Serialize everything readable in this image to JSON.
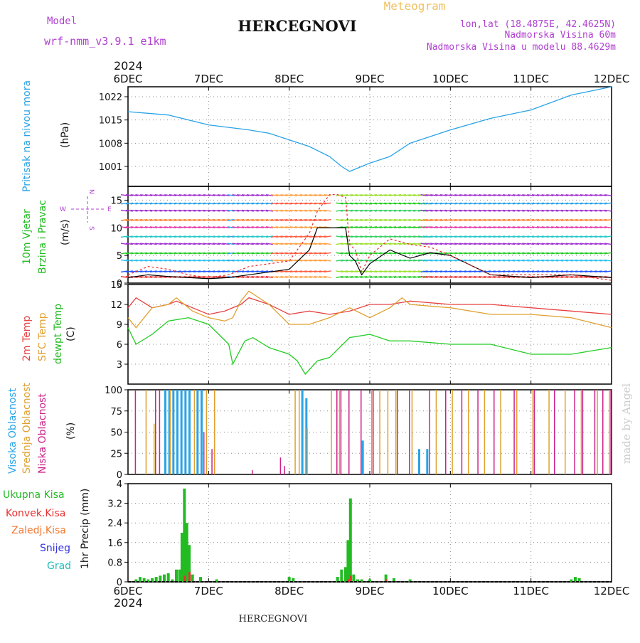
{
  "header": {
    "model_label": "Model",
    "model_name": "wrf-nmm_v3.9.1  e1km",
    "station": "HERCEGNOVI",
    "product": "Meteogram",
    "lonlat": "lon,lat (18.4875E, 42.4625N)",
    "elevation": "Nadmorska Visina 60m",
    "model_elevation": "Nadmorska Visina u modelu 88.4629m",
    "year": "2024",
    "footer_station": "HERCEGNOVI",
    "watermark": "made by Angel"
  },
  "colors": {
    "pressure": "#29a3e6",
    "wind_speed": "#000000",
    "wind_gust": "#e83030",
    "temp2m": "#e84040",
    "sfc_temp": "#e0a030",
    "dewpoint": "#22cc22",
    "cloud_high": "#29a3e6",
    "cloud_mid": "#e0a030",
    "cloud_low": "#cc2288",
    "total_precip": "#22bb22",
    "conv_precip": "#e83030",
    "frozen_precip": "#f07830",
    "snow": "#3333dd",
    "graupel": "#22bbbb",
    "label_purple": "#b040d0",
    "label_orange": "#f0c060"
  },
  "chart_data": [
    {
      "type": "line",
      "id": "pressure",
      "ylabel_left": "Pritisak na nivou mora",
      "ylabel_unit": "(hPa)",
      "ylim": [
        995,
        1025
      ],
      "yticks": [
        "1001",
        "1008",
        "1015",
        "1022"
      ],
      "xtick_labels_top": [
        "6DEC",
        "7DEC",
        "8DEC",
        "9DEC",
        "10DEC",
        "11DEC",
        "12DEC"
      ],
      "grid": true,
      "series": [
        {
          "x": [
            0,
            0.25,
            0.5,
            1,
            1.5,
            1.75,
            2,
            2.25,
            2.5,
            2.65,
            2.75,
            2.9,
            3,
            3.25,
            3.5,
            4,
            4.5,
            5,
            5.5,
            6
          ],
          "values": [
            1017.5,
            1017,
            1016.5,
            1013.5,
            1012,
            1011,
            1009,
            1007,
            1004,
            1001,
            999.5,
            1001,
            1002,
            1004,
            1008,
            1012,
            1015.5,
            1018,
            1022.5,
            1025
          ]
        }
      ]
    },
    {
      "type": "line",
      "id": "wind",
      "ylabel_1": "10m Vjetar",
      "ylabel_2": "Brzina i Pravac",
      "ylabel_unit": "(m/s)",
      "compass": {
        "n": "N",
        "s": "S",
        "w": "W",
        "e": "E"
      },
      "ylim": [
        0,
        17.5
      ],
      "yticks": [
        "0",
        "5",
        "10",
        "15"
      ],
      "grid": true,
      "series": [
        {
          "x": [
            0,
            0.25,
            0.5,
            0.75,
            1,
            1.25,
            1.5,
            1.75,
            2,
            2.25,
            2.35,
            2.5,
            2.6,
            2.7,
            2.75,
            2.82,
            2.9,
            3,
            3.25,
            3.5,
            3.75,
            4,
            4.5,
            5,
            5.5,
            6
          ],
          "values": [
            1,
            1.5,
            1.2,
            1,
            0.8,
            1,
            1.5,
            2,
            2.5,
            6,
            10,
            10,
            10,
            10,
            5,
            4,
            1.5,
            3.5,
            6,
            4.5,
            5.5,
            5,
            1.5,
            1,
            1.5,
            1
          ]
        },
        {
          "x": [
            0,
            0.25,
            0.5,
            0.75,
            1,
            1.25,
            1.5,
            1.75,
            2,
            2.25,
            2.35,
            2.5,
            2.6,
            2.7,
            2.75,
            2.82,
            2.9,
            3,
            3.25,
            3.5,
            3.75,
            4,
            4.5,
            5,
            5.5,
            6
          ],
          "values": [
            1.5,
            3,
            2.5,
            1.5,
            1,
            1.5,
            3,
            3.5,
            4,
            9,
            13,
            16,
            16,
            15.5,
            7,
            6,
            2,
            5,
            8,
            7,
            6.5,
            5,
            1.5,
            1.5,
            1.5,
            0.5
          ]
        }
      ]
    },
    {
      "type": "line",
      "id": "temperature",
      "ylabel_1": "2m Temp",
      "ylabel_2": "SFC Temp",
      "ylabel_3": "dewpt Temp",
      "ylabel_unit": "(C)",
      "ylim": [
        0,
        15
      ],
      "yticks": [
        "3",
        "6",
        "9",
        "12",
        "15"
      ],
      "grid": true,
      "series": [
        {
          "name": "2m Temp",
          "x": [
            0,
            0.1,
            0.3,
            0.5,
            0.6,
            0.8,
            1,
            1.2,
            1.4,
            1.5,
            1.75,
            2,
            2.25,
            2.5,
            2.75,
            3,
            3.25,
            3.5,
            4,
            4.5,
            5,
            5.5,
            6
          ],
          "values": [
            11.5,
            13,
            11.5,
            12,
            12.5,
            11.5,
            10.5,
            11,
            12,
            13,
            12,
            10.5,
            11,
            10.5,
            11,
            12,
            12,
            12.5,
            12,
            12,
            11.5,
            11,
            10.5
          ]
        },
        {
          "name": "SFC Temp",
          "x": [
            0,
            0.1,
            0.3,
            0.5,
            0.6,
            0.8,
            1,
            1.2,
            1.3,
            1.4,
            1.5,
            1.75,
            2,
            2.25,
            2.5,
            2.75,
            3,
            3.25,
            3.4,
            3.5,
            4,
            4.5,
            5,
            5.5,
            6
          ],
          "values": [
            10,
            8.5,
            11.5,
            12,
            13,
            11,
            10,
            9.5,
            10,
            12.5,
            14,
            12,
            9,
            9,
            10,
            11.5,
            10,
            11.5,
            13,
            12,
            11.5,
            10.5,
            10.5,
            10,
            8.5
          ]
        },
        {
          "name": "dewpt Temp",
          "x": [
            0,
            0.1,
            0.3,
            0.5,
            0.75,
            1,
            1.25,
            1.3,
            1.45,
            1.55,
            1.75,
            2,
            2.1,
            2.2,
            2.35,
            2.5,
            2.75,
            3,
            3.25,
            3.5,
            4,
            4.5,
            5,
            5.5,
            6
          ],
          "values": [
            8.5,
            6,
            7.5,
            9.5,
            10,
            9,
            6,
            3,
            6.5,
            7,
            5.5,
            4.5,
            3.5,
            1.5,
            3.5,
            4,
            7,
            7.5,
            6.5,
            6.5,
            6,
            6,
            4.5,
            4.5,
            5.5
          ]
        }
      ]
    },
    {
      "type": "bar",
      "id": "clouds",
      "ylabel_1": "Visoka Oblacnost",
      "ylabel_2": "Srednja Oblacnost",
      "ylabel_3": "Niska Oblacnost",
      "ylabel_unit": "(%)",
      "ylim": [
        0,
        100
      ],
      "yticks": [
        "0",
        "25",
        "50",
        "75",
        "100"
      ],
      "grid": true,
      "series": [
        {
          "name": "Visoka Oblacnost",
          "x": [
            0.45,
            0.5,
            0.55,
            0.6,
            0.65,
            0.7,
            0.75,
            0.85,
            0.9,
            2.15,
            2.2,
            2.9,
            3.6,
            3.7
          ],
          "values": [
            100,
            100,
            100,
            100,
            100,
            100,
            100,
            100,
            100,
            100,
            90,
            40,
            30,
            30
          ]
        },
        {
          "name": "Srednja Oblacnost",
          "x": [
            0.2,
            0.3,
            0.5,
            0.8,
            0.95,
            1.05,
            2.05,
            2.1,
            2.2,
            2.5,
            2.6,
            3.0,
            3.1,
            3.2,
            3.3,
            3.5,
            3.8,
            4.0,
            4.2,
            4.4,
            4.6,
            4.8,
            5.0,
            5.2,
            5.4,
            5.6,
            5.8,
            5.95
          ],
          "values": [
            100,
            60,
            100,
            100,
            100,
            100,
            100,
            100,
            55,
            100,
            100,
            100,
            100,
            100,
            100,
            100,
            100,
            100,
            100,
            100,
            100,
            100,
            100,
            100,
            100,
            100,
            100,
            100
          ]
        },
        {
          "name": "Niska Oblacnost",
          "x": [
            0.05,
            0.3,
            0.35,
            0.9,
            1.0,
            1.5,
            1.85,
            1.9,
            2.55,
            2.6,
            2.7,
            2.85,
            3.0,
            3.3,
            3.45,
            3.7,
            3.9,
            4.1,
            4.3,
            4.5,
            4.75,
            5.0,
            5.25,
            5.5,
            5.6,
            5.75,
            5.85,
            5.95
          ],
          "values": [
            100,
            100,
            100,
            50,
            30,
            5,
            20,
            10,
            100,
            100,
            100,
            100,
            100,
            100,
            100,
            100,
            100,
            100,
            100,
            100,
            100,
            100,
            100,
            100,
            100,
            100,
            100,
            100
          ]
        }
      ]
    },
    {
      "type": "bar",
      "id": "precip",
      "legend_1": "Ukupna Kisa",
      "legend_2": "Konvek.Kisa",
      "legend_3": "Zaledj.Kisa",
      "legend_4": "Snijeg",
      "legend_5": "Grad",
      "ylabel_unit": "1hr Precip (mm)",
      "ylim": [
        0,
        4
      ],
      "yticks": [
        "0",
        "0.8",
        "1.6",
        "2.4",
        "3.2",
        "4"
      ],
      "xtick_labels_bottom": [
        "6DEC",
        "7DEC",
        "8DEC",
        "9DEC",
        "10DEC",
        "11DEC",
        "12DEC"
      ],
      "grid": true,
      "series": [
        {
          "name": "Ukupna Kisa",
          "x": [
            0.1,
            0.15,
            0.2,
            0.25,
            0.3,
            0.35,
            0.4,
            0.45,
            0.5,
            0.55,
            0.6,
            0.64,
            0.67,
            0.7,
            0.73,
            0.76,
            0.8,
            0.9,
            1.1,
            2.0,
            2.05,
            2.6,
            2.65,
            2.7,
            2.73,
            2.76,
            2.8,
            2.85,
            2.9,
            3.0,
            3.2,
            3.3,
            3.5,
            5.5,
            5.55,
            5.6
          ],
          "values": [
            0.1,
            0.2,
            0.15,
            0.1,
            0.15,
            0.2,
            0.25,
            0.3,
            0.35,
            0.1,
            0.5,
            0.5,
            2.0,
            3.8,
            2.4,
            1.5,
            0.3,
            0.2,
            0.1,
            0.2,
            0.15,
            0.2,
            0.5,
            0.6,
            1.7,
            3.4,
            0.3,
            0.1,
            0.1,
            0.1,
            0.3,
            0.15,
            0.1,
            0.1,
            0.2,
            0.15
          ]
        },
        {
          "name": "Konvek.Kisa",
          "x": [
            0.7,
            0.76,
            2.73,
            2.76,
            3.2
          ],
          "values": [
            0.25,
            0.4,
            0.1,
            0.25,
            0.1
          ]
        }
      ]
    }
  ]
}
